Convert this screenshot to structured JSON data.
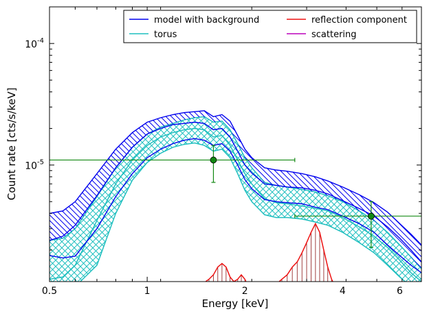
{
  "chart_data": {
    "type": "line",
    "xlabel": "Energy [keV]",
    "ylabel": "Count rate [cts/s/keV]",
    "x_scale": "log",
    "y_scale": "log",
    "xlim": [
      0.5,
      7.0
    ],
    "ylim": [
      1.1e-06,
      0.0002
    ],
    "x_ticks": [
      {
        "value": 0.5,
        "label": "0.5"
      },
      {
        "value": 1,
        "label": "1"
      },
      {
        "value": 2,
        "label": "2"
      },
      {
        "value": 4,
        "label": "4"
      },
      {
        "value": 6,
        "label": "6"
      }
    ],
    "y_ticks": [
      {
        "value": 1e-05,
        "base": "10",
        "exp": "-5"
      },
      {
        "value": 0.0001,
        "base": "10",
        "exp": "-4"
      }
    ],
    "grid": false,
    "legend": {
      "placement": "top-right",
      "entries": [
        {
          "label": "model with background",
          "color": "#0000ee"
        },
        {
          "label": "reflection component",
          "color": "#ee1111"
        },
        {
          "label": "torus",
          "color": "#1fbfbf"
        },
        {
          "label": "scattering",
          "color": "#bb00bb"
        }
      ]
    },
    "energy": [
      0.5,
      0.55,
      0.6,
      0.7,
      0.8,
      0.9,
      1.0,
      1.1,
      1.2,
      1.3,
      1.4,
      1.5,
      1.6,
      1.7,
      1.8,
      1.9,
      2.0,
      2.1,
      2.3,
      2.5,
      2.7,
      3.0,
      3.3,
      3.6,
      4.0,
      4.5,
      5.0,
      5.5,
      6.0,
      6.5,
      7.0
    ],
    "series": [
      {
        "name": "model with background",
        "color": "#0000ee",
        "center": [
          2.4e-06,
          2.6e-06,
          3.2e-06,
          5.6e-06,
          9.5e-06,
          1.4e-05,
          1.8e-05,
          2e-05,
          2.15e-05,
          2.2e-05,
          2.25e-05,
          2.2e-05,
          1.95e-05,
          2e-05,
          1.7e-05,
          1.3e-05,
          1e-05,
          8.6e-06,
          7e-06,
          6.8e-06,
          6.6e-06,
          6.5e-06,
          6.2e-06,
          5.8e-06,
          5.1e-06,
          4.4e-06,
          3.8e-06,
          3.1e-06,
          2.5e-06,
          2e-06,
          1.6e-06
        ],
        "upper": [
          4e-06,
          4.2e-06,
          5e-06,
          8.5e-06,
          1.35e-05,
          1.85e-05,
          2.25e-05,
          2.45e-05,
          2.6e-05,
          2.7e-05,
          2.75e-05,
          2.8e-05,
          2.5e-05,
          2.6e-05,
          2.3e-05,
          1.75e-05,
          1.35e-05,
          1.15e-05,
          9.5e-06,
          9.1e-06,
          8.9e-06,
          8.5e-06,
          8e-06,
          7.4e-06,
          6.6e-06,
          5.7e-06,
          4.9e-06,
          4.1e-06,
          3.3e-06,
          2.7e-06,
          2.2e-06
        ],
        "lower": [
          1.8e-06,
          1.72e-06,
          1.78e-06,
          3e-06,
          5.5e-06,
          8.5e-06,
          1.15e-05,
          1.35e-05,
          1.5e-05,
          1.6e-05,
          1.65e-05,
          1.6e-05,
          1.45e-05,
          1.5e-05,
          1.3e-05,
          1e-05,
          7.6e-06,
          6.4e-06,
          5.2e-06,
          5e-06,
          4.9e-06,
          4.8e-06,
          4.5e-06,
          4.3e-06,
          3.8e-06,
          3.3e-06,
          2.8e-06,
          2.2e-06,
          1.8e-06,
          1.5e-06,
          1.3e-06
        ]
      },
      {
        "name": "torus",
        "color": "#1fbfbf",
        "center": [
          1.15e-06,
          1.2e-06,
          1.5e-06,
          3.5e-06,
          7e-06,
          1.1e-05,
          1.45e-05,
          1.7e-05,
          1.85e-05,
          1.95e-05,
          2e-05,
          1.95e-05,
          1.7e-05,
          1.75e-05,
          1.45e-05,
          1.1e-05,
          8.5e-06,
          7e-06,
          5.3e-06,
          4.9e-06,
          4.8e-06,
          4.6e-06,
          4.4e-06,
          4.2e-06,
          3.7e-06,
          3.1e-06,
          2.6e-06,
          2.1e-06,
          1.65e-06,
          1.3e-06,
          1.1e-06
        ],
        "upper": [
          2.4e-06,
          2.5e-06,
          3e-06,
          5.5e-06,
          9.5e-06,
          1.4e-05,
          1.8e-05,
          2.05e-05,
          2.2e-05,
          2.35e-05,
          2.45e-05,
          2.5e-05,
          2.25e-05,
          2.3e-05,
          1.95e-05,
          1.5e-05,
          1.15e-05,
          9.5e-06,
          7.2e-06,
          6.8e-06,
          6.6e-06,
          6.3e-06,
          6e-06,
          5.6e-06,
          5e-06,
          4.2e-06,
          3.5e-06,
          2.8e-06,
          2.2e-06,
          1.75e-06,
          1.4e-06
        ],
        "lower": [
          1e-06,
          1e-06,
          1e-06,
          1.5e-06,
          4e-06,
          7.5e-06,
          1.05e-05,
          1.25e-05,
          1.4e-05,
          1.48e-05,
          1.52e-05,
          1.45e-05,
          1.3e-05,
          1.35e-05,
          1.15e-05,
          8.5e-06,
          6.2e-06,
          5e-06,
          3.9e-06,
          3.7e-06,
          3.7e-06,
          3.6e-06,
          3.4e-06,
          3.2e-06,
          2.8e-06,
          2.3e-06,
          1.9e-06,
          1.5e-06,
          1.2e-06,
          1e-06,
          1e-06
        ]
      },
      {
        "name": "reflection component",
        "color": "#ee1111",
        "points": [
          [
            1.4,
            1e-06
          ],
          [
            1.5,
            1.08e-06
          ],
          [
            1.55,
            1.15e-06
          ],
          [
            1.6,
            1.25e-06
          ],
          [
            1.65,
            1.45e-06
          ],
          [
            1.7,
            1.55e-06
          ],
          [
            1.75,
            1.45e-06
          ],
          [
            1.8,
            1.2e-06
          ],
          [
            1.85,
            1.1e-06
          ],
          [
            1.9,
            1.15e-06
          ],
          [
            1.95,
            1.25e-06
          ],
          [
            2.0,
            1.15e-06
          ],
          [
            2.05,
            1e-06
          ],
          [
            2.3,
            1e-06
          ],
          [
            2.5,
            1.05e-06
          ],
          [
            2.6,
            1.15e-06
          ],
          [
            2.7,
            1.25e-06
          ],
          [
            2.8,
            1.45e-06
          ],
          [
            2.9,
            1.6e-06
          ],
          [
            3.0,
            1.9e-06
          ],
          [
            3.1,
            2.3e-06
          ],
          [
            3.2,
            2.8e-06
          ],
          [
            3.3,
            3.3e-06
          ],
          [
            3.4,
            2.8e-06
          ],
          [
            3.5,
            2e-06
          ],
          [
            3.6,
            1.45e-06
          ],
          [
            3.7,
            1.15e-06
          ],
          [
            3.8,
            1e-06
          ]
        ]
      }
    ],
    "data_points": [
      {
        "x": 1.6,
        "y": 1.1e-05,
        "xmin": 0.5,
        "xmax": 2.85,
        "ymin": 7.2e-06,
        "ymax": 1.45e-05
      },
      {
        "x": 4.9,
        "y": 3.8e-06,
        "xmin": 2.85,
        "xmax": 7.0,
        "ymin": 2.1e-06,
        "ymax": 5e-06
      }
    ],
    "data_color": "#118811"
  }
}
